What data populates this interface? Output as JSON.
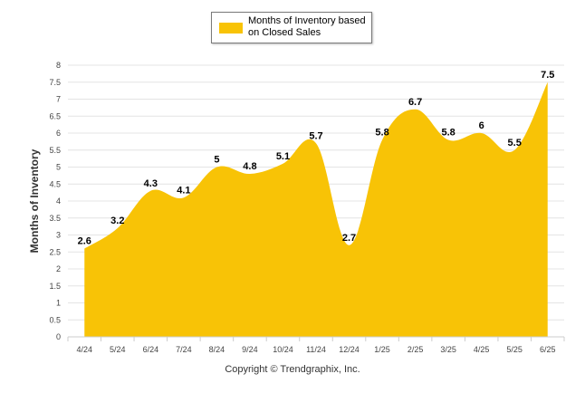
{
  "colors": {
    "fill": "#F8C306",
    "grid": "#e4e4e4",
    "axis": "#cccccc"
  },
  "legend": {
    "label": "Months of Inventory based on Closed Sales"
  },
  "footer": {
    "copyright": "Copyright © Trendgraphix, Inc."
  },
  "chart_data": {
    "type": "area",
    "smooth": true,
    "categories": [
      "4/24",
      "5/24",
      "6/24",
      "7/24",
      "8/24",
      "9/24",
      "10/24",
      "11/24",
      "12/24",
      "1/25",
      "2/25",
      "3/25",
      "4/25",
      "5/25",
      "6/25"
    ],
    "series": [
      {
        "name": "Months of Inventory based on Closed Sales",
        "values": [
          2.6,
          3.2,
          4.3,
          4.1,
          5,
          4.8,
          5.1,
          5.7,
          2.7,
          5.8,
          6.7,
          5.8,
          6,
          5.5,
          7.5
        ]
      }
    ],
    "data_labels": [
      "2.6",
      "3.2",
      "4.3",
      "4.1",
      "5",
      "4.8",
      "5.1",
      "5.7",
      "2.7",
      "5.8",
      "6.7",
      "5.8",
      "6",
      "5.5",
      "7.5"
    ],
    "ylabel": "Months of Inventory",
    "ylim": [
      0,
      8
    ],
    "yticks": [
      "0",
      "0.5",
      "1",
      "1.5",
      "2",
      "2.5",
      "3",
      "3.5",
      "4",
      "4.5",
      "5",
      "5.5",
      "6",
      "6.5",
      "7",
      "7.5",
      "8"
    ],
    "grid": true,
    "legend_position": "top-center"
  }
}
